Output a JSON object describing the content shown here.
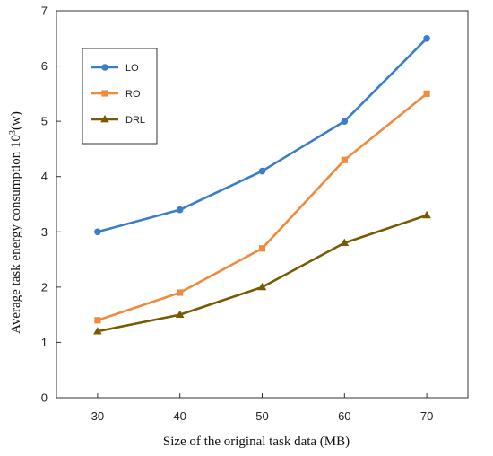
{
  "chart_data": {
    "type": "line",
    "title": "",
    "xlabel": "Size of the original task data (MB)",
    "ylabel": "Average task energy consumption 10",
    "ylabel_sup": "3",
    "ylabel_suffix": "(w)",
    "x": [
      30,
      40,
      50,
      60,
      70
    ],
    "xlim": [
      25,
      75
    ],
    "ylim": [
      0,
      7
    ],
    "yticks": [
      0,
      1,
      2,
      3,
      4,
      5,
      6,
      7
    ],
    "grid": false,
    "legend_position": "top-left",
    "series": [
      {
        "name": "LO",
        "color": "#3a7dc9",
        "marker": "circle",
        "values": [
          3.0,
          3.4,
          4.1,
          5.0,
          6.5
        ]
      },
      {
        "name": "RO",
        "color": "#f08a3c",
        "marker": "square",
        "values": [
          1.4,
          1.9,
          2.7,
          4.3,
          5.5
        ]
      },
      {
        "name": "DRL",
        "color": "#7a5a00",
        "marker": "triangle",
        "values": [
          1.2,
          1.5,
          2.0,
          2.8,
          3.3
        ]
      }
    ]
  }
}
